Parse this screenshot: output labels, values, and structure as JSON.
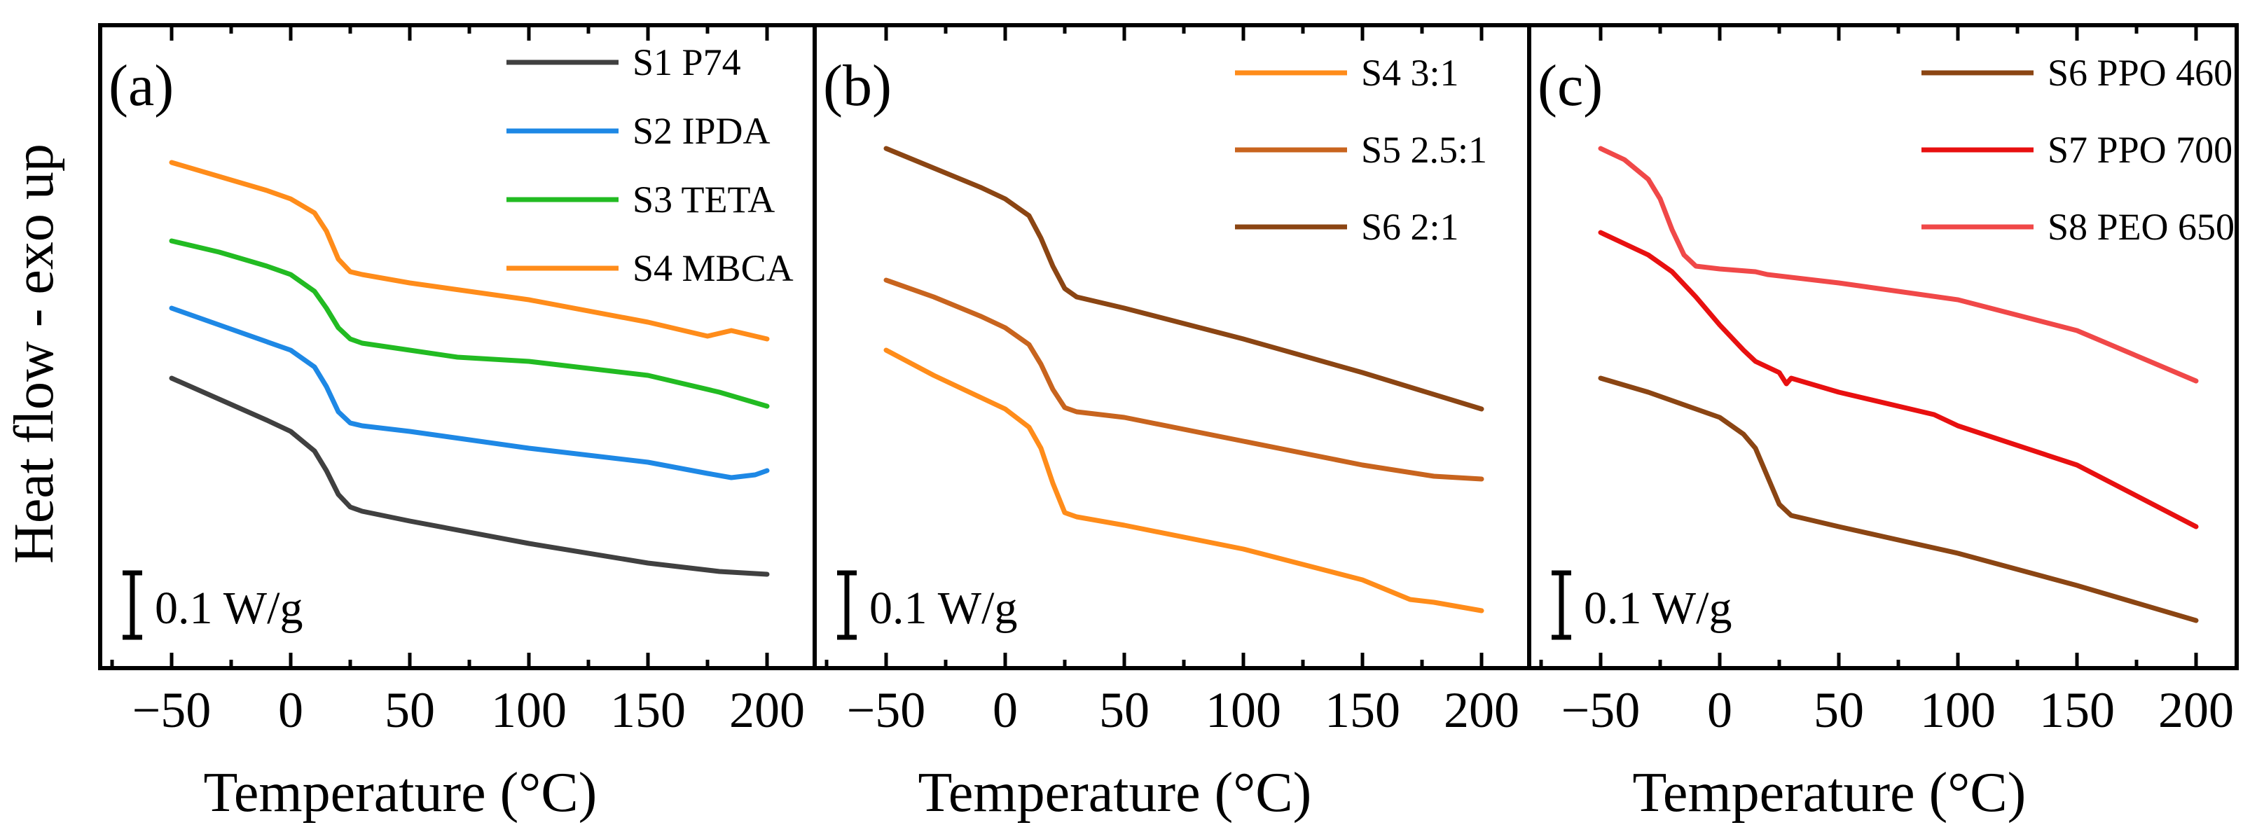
{
  "figure": {
    "ylabel": "Heat flow - exo up",
    "scale_bar_label": "0.1 W/g",
    "scale_bar_value_W_per_g": 0.1
  },
  "chart_data": [
    {
      "type": "line",
      "panel_label": "(a)",
      "xlabel": "Temperature (°C)",
      "xlim": [
        -80,
        220
      ],
      "xticks": [
        -50,
        0,
        50,
        100,
        150,
        200
      ],
      "xtick_labels": [
        "−50",
        "0",
        "50",
        "100",
        "150",
        "200"
      ],
      "series": [
        {
          "name": "S1 P74",
          "color": "#404040",
          "points": [
            [
              -50,
              270
            ],
            [
              -30,
              285
            ],
            [
              -10,
              300
            ],
            [
              0,
              308
            ],
            [
              10,
              322
            ],
            [
              15,
              336
            ],
            [
              20,
              353
            ],
            [
              25,
              362
            ],
            [
              30,
              365
            ],
            [
              50,
              372
            ],
            [
              100,
              388
            ],
            [
              150,
              402
            ],
            [
              180,
              408
            ],
            [
              200,
              410
            ]
          ]
        },
        {
          "name": "S2 IPDA",
          "color": "#1E88E5",
          "points": [
            [
              -50,
              220
            ],
            [
              -30,
              232
            ],
            [
              -10,
              244
            ],
            [
              0,
              250
            ],
            [
              10,
              262
            ],
            [
              15,
              276
            ],
            [
              20,
              294
            ],
            [
              25,
              302
            ],
            [
              30,
              304
            ],
            [
              50,
              308
            ],
            [
              100,
              320
            ],
            [
              150,
              330
            ],
            [
              175,
              338
            ],
            [
              185,
              341
            ],
            [
              195,
              339
            ],
            [
              200,
              336
            ]
          ]
        },
        {
          "name": "S3 TETA",
          "color": "#22BB22",
          "points": [
            [
              -50,
              172
            ],
            [
              -30,
              180
            ],
            [
              -10,
              190
            ],
            [
              0,
              196
            ],
            [
              10,
              208
            ],
            [
              15,
              220
            ],
            [
              20,
              234
            ],
            [
              25,
              242
            ],
            [
              30,
              245
            ],
            [
              50,
              250
            ],
            [
              70,
              255
            ],
            [
              100,
              258
            ],
            [
              150,
              268
            ],
            [
              180,
              280
            ],
            [
              200,
              290
            ]
          ]
        },
        {
          "name": "S4 MBCA",
          "color": "#FF8C1A",
          "points": [
            [
              -50,
              116
            ],
            [
              -30,
              126
            ],
            [
              -10,
              136
            ],
            [
              0,
              142
            ],
            [
              10,
              152
            ],
            [
              15,
              165
            ],
            [
              20,
              185
            ],
            [
              25,
              194
            ],
            [
              30,
              196
            ],
            [
              50,
              202
            ],
            [
              100,
              214
            ],
            [
              150,
              230
            ],
            [
              170,
              238
            ],
            [
              175,
              240
            ],
            [
              185,
              236
            ],
            [
              200,
              242
            ]
          ]
        }
      ]
    },
    {
      "type": "line",
      "panel_label": "(b)",
      "xlabel": "Temperature (°C)",
      "xlim": [
        -80,
        220
      ],
      "xticks": [
        -50,
        0,
        50,
        100,
        150,
        200
      ],
      "xtick_labels": [
        "−50",
        "0",
        "50",
        "100",
        "150",
        "200"
      ],
      "series": [
        {
          "name": "S4 3:1",
          "color": "#FF8C1A",
          "points": [
            [
              -50,
              250
            ],
            [
              -30,
              268
            ],
            [
              -10,
              284
            ],
            [
              0,
              292
            ],
            [
              10,
              305
            ],
            [
              15,
              320
            ],
            [
              20,
              345
            ],
            [
              25,
              366
            ],
            [
              30,
              369
            ],
            [
              50,
              375
            ],
            [
              100,
              392
            ],
            [
              150,
              414
            ],
            [
              170,
              428
            ],
            [
              180,
              430
            ],
            [
              200,
              436
            ]
          ]
        },
        {
          "name": "S5 2.5:1",
          "color": "#C8641E",
          "points": [
            [
              -50,
              200
            ],
            [
              -30,
              212
            ],
            [
              -10,
              226
            ],
            [
              0,
              234
            ],
            [
              10,
              246
            ],
            [
              15,
              260
            ],
            [
              20,
              278
            ],
            [
              25,
              291
            ],
            [
              30,
              294
            ],
            [
              50,
              298
            ],
            [
              100,
              315
            ],
            [
              150,
              332
            ],
            [
              180,
              340
            ],
            [
              200,
              342
            ]
          ]
        },
        {
          "name": "S6 2:1",
          "color": "#8B4513",
          "points": [
            [
              -50,
              106
            ],
            [
              -30,
              120
            ],
            [
              -10,
              134
            ],
            [
              0,
              142
            ],
            [
              10,
              154
            ],
            [
              15,
              170
            ],
            [
              20,
              190
            ],
            [
              25,
              206
            ],
            [
              30,
              212
            ],
            [
              50,
              220
            ],
            [
              100,
              242
            ],
            [
              150,
              266
            ],
            [
              200,
              292
            ]
          ]
        }
      ]
    },
    {
      "type": "line",
      "panel_label": "(c)",
      "xlabel": "Temperature (°C)",
      "xlim": [
        -80,
        220
      ],
      "xticks": [
        -50,
        0,
        50,
        100,
        150,
        200
      ],
      "xtick_labels": [
        "−50",
        "0",
        "50",
        "100",
        "150",
        "200"
      ],
      "series": [
        {
          "name": "S6 PPO 460",
          "color": "#8B4513",
          "points": [
            [
              -50,
              270
            ],
            [
              -30,
              280
            ],
            [
              -10,
              292
            ],
            [
              0,
              298
            ],
            [
              10,
              310
            ],
            [
              15,
              320
            ],
            [
              20,
              340
            ],
            [
              25,
              360
            ],
            [
              30,
              368
            ],
            [
              50,
              376
            ],
            [
              100,
              395
            ],
            [
              150,
              418
            ],
            [
              200,
              443
            ]
          ]
        },
        {
          "name": "S7 PPO 700",
          "color": "#E81010",
          "points": [
            [
              -50,
              166
            ],
            [
              -40,
              174
            ],
            [
              -30,
              182
            ],
            [
              -20,
              194
            ],
            [
              -10,
              212
            ],
            [
              0,
              232
            ],
            [
              10,
              250
            ],
            [
              15,
              258
            ],
            [
              20,
              262
            ],
            [
              25,
              266
            ],
            [
              28,
              274
            ],
            [
              30,
              270
            ],
            [
              50,
              280
            ],
            [
              90,
              296
            ],
            [
              100,
              304
            ],
            [
              150,
              332
            ],
            [
              200,
              376
            ]
          ]
        },
        {
          "name": "S8 PEO 650",
          "color": "#F04848",
          "points": [
            [
              -50,
              106
            ],
            [
              -40,
              114
            ],
            [
              -30,
              128
            ],
            [
              -25,
              142
            ],
            [
              -20,
              164
            ],
            [
              -15,
              182
            ],
            [
              -10,
              190
            ],
            [
              0,
              192
            ],
            [
              15,
              194
            ],
            [
              20,
              196
            ],
            [
              50,
              202
            ],
            [
              100,
              214
            ],
            [
              150,
              236
            ],
            [
              200,
              272
            ]
          ]
        }
      ]
    }
  ]
}
